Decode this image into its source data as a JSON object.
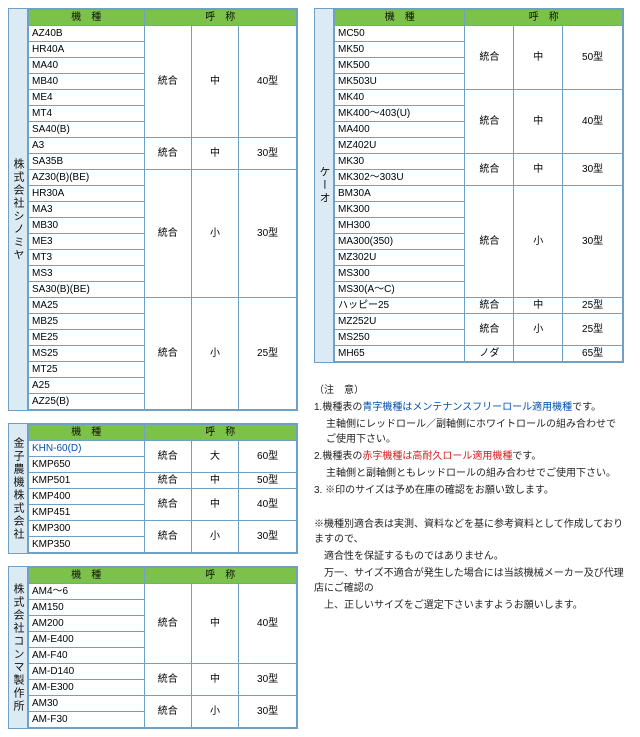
{
  "colors": {
    "header_bg": "#7cc24a",
    "vendor_bg": "#dbeaf3",
    "border": "#6fa0c8",
    "blue_text": "#0050b0",
    "red_text": "#d02020"
  },
  "headers": {
    "model": "機　種",
    "name": "呼　称"
  },
  "tbl1": {
    "vendor": "株式会社シノミヤ",
    "cols": {
      "model": 110,
      "c1": 45,
      "c2": 45,
      "c3": 55
    },
    "groups": [
      {
        "c1": "統合",
        "c2": "中",
        "c3": "40型",
        "models": [
          "AZ40B",
          "HR40A",
          "MA40",
          "MB40",
          "ME4",
          "MT4",
          "SA40(B)"
        ]
      },
      {
        "c1": "統合",
        "c2": "中",
        "c3": "30型",
        "models": [
          "A3",
          "SA35B"
        ]
      },
      {
        "c1": "統合",
        "c2": "小",
        "c3": "30型",
        "models": [
          "AZ30(B)(BE)",
          "HR30A",
          "MA3",
          "MB30",
          "ME3",
          "MT3",
          "MS3",
          "SA30(B)(BE)"
        ]
      },
      {
        "c1": "統合",
        "c2": "小",
        "c3": "25型",
        "models": [
          "MA25",
          "MB25",
          "ME25",
          "MS25",
          "MT25",
          "A25",
          "AZ25(B)"
        ]
      }
    ]
  },
  "tbl2": {
    "vendor": "金子農機株式会社",
    "cols": {
      "model": 110,
      "c1": 45,
      "c2": 45,
      "c3": 55
    },
    "groups": [
      {
        "c1": "統合",
        "c2": "大",
        "c3": "60型",
        "models": [
          {
            "t": "KHN-60(D)",
            "blue": true
          },
          "KMP650"
        ]
      },
      {
        "c1": "統合",
        "c2": "中",
        "c3": "50型",
        "models": [
          "KMP501"
        ]
      },
      {
        "c1": "統合",
        "c2": "中",
        "c3": "40型",
        "models": [
          "KMP400",
          "KMP451"
        ]
      },
      {
        "c1": "統合",
        "c2": "小",
        "c3": "30型",
        "models": [
          "KMP300",
          "KMP350"
        ]
      }
    ]
  },
  "tbl3": {
    "vendor": "株式会社コンマ製作所",
    "cols": {
      "model": 110,
      "c1": 45,
      "c2": 45,
      "c3": 55
    },
    "groups": [
      {
        "c1": "統合",
        "c2": "中",
        "c3": "40型",
        "models": [
          "AM4～6",
          "AM150",
          "AM200",
          "AM-E400",
          "AM-F40"
        ]
      },
      {
        "c1": "統合",
        "c2": "中",
        "c3": "30型",
        "models": [
          "AM-D140",
          "AM-E300"
        ]
      },
      {
        "c1": "統合",
        "c2": "小",
        "c3": "30型",
        "models": [
          "AM30",
          "AM-F30"
        ]
      }
    ]
  },
  "tbl4": {
    "vendor": "ケーオ",
    "cols": {
      "model": 120,
      "c1": 45,
      "c2": 45,
      "c3": 55
    },
    "groups": [
      {
        "c1": "統合",
        "c2": "中",
        "c3": "50型",
        "models": [
          "MC50",
          "MK50",
          "MK500",
          "MK503U"
        ]
      },
      {
        "c1": "統合",
        "c2": "中",
        "c3": "40型",
        "models": [
          "MK40",
          "MK400～403(U)",
          "MA400",
          "MZ402U"
        ]
      },
      {
        "c1": "統合",
        "c2": "中",
        "c3": "30型",
        "models": [
          "MK30",
          "MK302～303U"
        ]
      },
      {
        "c1": "統合",
        "c2": "小",
        "c3": "30型",
        "models": [
          "BM30A",
          "MK300",
          "MH300",
          "MA300(350)",
          "MZ302U",
          "MS300",
          "MS30(A～C)"
        ]
      },
      {
        "c1": "統合",
        "c2": "中",
        "c3": "25型",
        "models": [
          "ハッピー25"
        ]
      },
      {
        "c1": "統合",
        "c2": "小",
        "c3": "25型",
        "models": [
          "MZ252U",
          "MS250"
        ]
      },
      {
        "c1": "ノダ",
        "c2": "",
        "c3": "65型",
        "models": [
          "MH65"
        ]
      }
    ]
  },
  "notes": {
    "title": "（注　意）",
    "lines": [
      {
        "n": "1.",
        "pre": "機種表の",
        "em": "青字機種はメンテナンスフリーロール適用機種",
        "emcls": "blue",
        "post": "です。"
      },
      {
        "indent": true,
        "text": "主軸側にレッドロール／副軸側にホワイトロールの組み合わせでご使用下さい。"
      },
      {
        "n": "2.",
        "pre": "機種表の",
        "em": "赤字機種は高耐久ロール適用機種",
        "emcls": "red",
        "post": "です。"
      },
      {
        "indent": true,
        "text": "主軸側と副軸側ともレッドロールの組み合わせでご使用下さい。"
      },
      {
        "n": "3.",
        "text": "※印のサイズは予め在庫の確認をお願い致します。"
      }
    ],
    "footer": [
      "※機種別適合表は実測、資料などを基に参考資料として作成しておりますので、",
      "　適合性を保証するものではありません。",
      "　万一、サイズ不適合が発生した場合には当該機械メーカー及び代理店にご確認の",
      "　上、正しいサイズをご選定下さいますようお願いします。"
    ]
  }
}
